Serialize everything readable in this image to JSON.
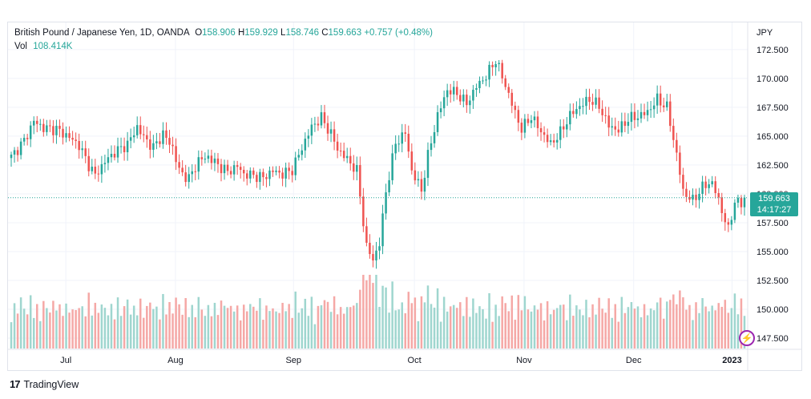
{
  "header": {
    "symbol": "British Pound / Japanese Yen, 1D, OANDA",
    "o_label": "O",
    "o_value": "158.906",
    "h_label": "H",
    "h_value": "159.929",
    "l_label": "L",
    "l_value": "158.746",
    "c_label": "C",
    "c_value": "159.663",
    "change": "+0.757 (+0.48%)",
    "vol_label": "Vol",
    "vol_value": "108.414K"
  },
  "last_price": {
    "price": "159.663",
    "countdown": "14:17:27"
  },
  "branding": {
    "logo": "17",
    "name": "TradingView"
  },
  "colors": {
    "up": "#26a69a",
    "down": "#ef5350",
    "up_vol": "#9fd6cf",
    "down_vol": "#f5a8a6",
    "grid": "#f0f3fa"
  },
  "chart_data": {
    "type": "candlestick",
    "currency_label": "JPY",
    "ylim": [
      146.6,
      173.6
    ],
    "y_ticks": [
      "172.500",
      "170.000",
      "167.500",
      "165.000",
      "162.500",
      "160.000",
      "157.500",
      "155.000",
      "152.500",
      "150.000",
      "147.500"
    ],
    "x_ticks": [
      "Jul",
      "Aug",
      "Sep",
      "Oct",
      "Nov",
      "Dec",
      "2023"
    ],
    "anchors": [
      [
        0,
        163.2
      ],
      [
        4,
        164.6
      ],
      [
        7,
        166.3
      ],
      [
        10,
        165.7
      ],
      [
        14,
        165.6
      ],
      [
        18,
        164.9
      ],
      [
        21,
        164.2
      ],
      [
        24,
        162.5
      ],
      [
        26,
        161.6
      ],
      [
        29,
        162.8
      ],
      [
        32,
        163.6
      ],
      [
        36,
        164.3
      ],
      [
        39,
        165.8
      ],
      [
        41,
        164.9
      ],
      [
        44,
        164.0
      ],
      [
        47,
        165.2
      ],
      [
        50,
        164.0
      ],
      [
        52,
        162.0
      ],
      [
        55,
        161.3
      ],
      [
        58,
        162.9
      ],
      [
        61,
        163.2
      ],
      [
        64,
        162.5
      ],
      [
        67,
        161.9
      ],
      [
        70,
        162.4
      ],
      [
        72,
        161.7
      ],
      [
        75,
        161.6
      ],
      [
        78,
        161.4
      ],
      [
        81,
        162.0
      ],
      [
        84,
        161.7
      ],
      [
        87,
        162.1
      ],
      [
        90,
        164.0
      ],
      [
        93,
        165.8
      ],
      [
        96,
        166.6
      ],
      [
        99,
        165.2
      ],
      [
        101,
        163.9
      ],
      [
        104,
        163.0
      ],
      [
        107,
        162.0
      ],
      [
        110,
        155.4
      ],
      [
        112,
        154.3
      ],
      [
        114,
        155.7
      ],
      [
        116,
        160.2
      ],
      [
        119,
        164.4
      ],
      [
        122,
        165.3
      ],
      [
        124,
        162.0
      ],
      [
        127,
        160.3
      ],
      [
        129,
        163.3
      ],
      [
        132,
        166.8
      ],
      [
        135,
        169.0
      ],
      [
        138,
        168.7
      ],
      [
        141,
        167.8
      ],
      [
        144,
        169.3
      ],
      [
        147,
        170.2
      ],
      [
        150,
        171.6
      ],
      [
        153,
        169.4
      ],
      [
        156,
        167.0
      ],
      [
        158,
        165.6
      ],
      [
        161,
        166.7
      ],
      [
        164,
        165.4
      ],
      [
        167,
        164.3
      ],
      [
        170,
        165.3
      ],
      [
        173,
        166.8
      ],
      [
        176,
        167.6
      ],
      [
        179,
        168.2
      ],
      [
        182,
        167.6
      ],
      [
        185,
        165.9
      ],
      [
        188,
        165.5
      ],
      [
        191,
        166.5
      ],
      [
        194,
        166.7
      ],
      [
        197,
        167.1
      ],
      [
        200,
        168.2
      ],
      [
        203,
        167.5
      ],
      [
        206,
        163.4
      ],
      [
        208,
        160.2
      ],
      [
        211,
        159.4
      ],
      [
        214,
        160.6
      ],
      [
        217,
        161.0
      ],
      [
        220,
        158.6
      ],
      [
        222,
        156.8
      ],
      [
        224,
        159.4
      ],
      [
        227,
        158.9
      ]
    ],
    "volume_range": [
      50,
      130
    ],
    "candle_count": 228
  }
}
